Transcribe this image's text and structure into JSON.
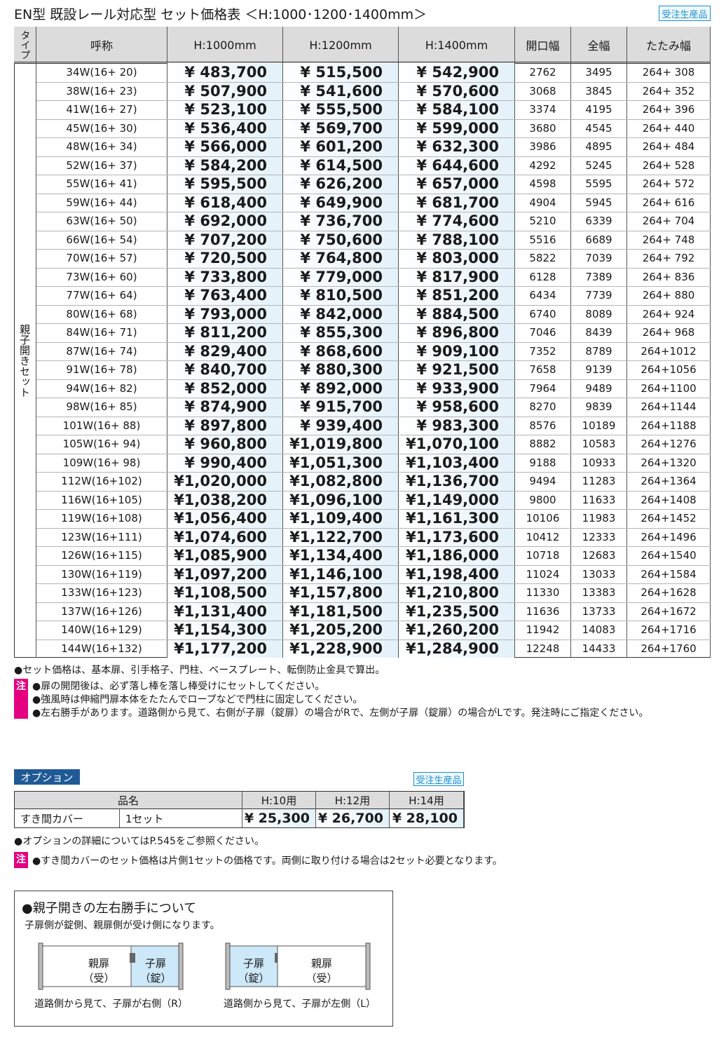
{
  "header": {
    "title": "EN型 既設レール対応型 セット価格表 ＜H:1000･1200･1400mm＞",
    "badge": "受注生産品"
  },
  "table": {
    "columns": [
      "タイプ",
      "呼称",
      "H:1000mm",
      "H:1200mm",
      "H:1400mm",
      "開口幅",
      "全幅",
      "たたみ幅"
    ],
    "type_label": "親子開きセット",
    "rows": [
      [
        "34W(16+ 20)",
        "¥ 483,700",
        "¥ 515,500",
        "¥ 542,900",
        "2762",
        "3495",
        "264+ 308"
      ],
      [
        "38W(16+ 23)",
        "¥ 507,900",
        "¥ 541,600",
        "¥ 570,600",
        "3068",
        "3845",
        "264+ 352"
      ],
      [
        "41W(16+ 27)",
        "¥ 523,100",
        "¥ 555,500",
        "¥ 584,100",
        "3374",
        "4195",
        "264+ 396"
      ],
      [
        "45W(16+ 30)",
        "¥ 536,400",
        "¥ 569,700",
        "¥ 599,000",
        "3680",
        "4545",
        "264+ 440"
      ],
      [
        "48W(16+ 34)",
        "¥ 566,000",
        "¥ 601,200",
        "¥ 632,300",
        "3986",
        "4895",
        "264+ 484"
      ],
      [
        "52W(16+ 37)",
        "¥ 584,200",
        "¥ 614,500",
        "¥ 644,600",
        "4292",
        "5245",
        "264+ 528"
      ],
      [
        "55W(16+ 41)",
        "¥ 595,500",
        "¥ 626,200",
        "¥ 657,000",
        "4598",
        "5595",
        "264+ 572"
      ],
      [
        "59W(16+ 44)",
        "¥ 618,400",
        "¥ 649,900",
        "¥ 681,700",
        "4904",
        "5945",
        "264+ 616"
      ],
      [
        "63W(16+ 50)",
        "¥ 692,000",
        "¥ 736,700",
        "¥ 774,600",
        "5210",
        "6339",
        "264+ 704"
      ],
      [
        "66W(16+ 54)",
        "¥ 707,200",
        "¥ 750,600",
        "¥ 788,100",
        "5516",
        "6689",
        "264+ 748"
      ],
      [
        "70W(16+ 57)",
        "¥ 720,500",
        "¥ 764,800",
        "¥ 803,000",
        "5822",
        "7039",
        "264+ 792"
      ],
      [
        "73W(16+ 60)",
        "¥ 733,800",
        "¥ 779,000",
        "¥ 817,900",
        "6128",
        "7389",
        "264+ 836"
      ],
      [
        "77W(16+ 64)",
        "¥ 763,400",
        "¥ 810,500",
        "¥ 851,200",
        "6434",
        "7739",
        "264+ 880"
      ],
      [
        "80W(16+ 68)",
        "¥ 793,000",
        "¥ 842,000",
        "¥ 884,500",
        "6740",
        "8089",
        "264+ 924"
      ],
      [
        "84W(16+ 71)",
        "¥ 811,200",
        "¥ 855,300",
        "¥ 896,800",
        "7046",
        "8439",
        "264+ 968"
      ],
      [
        "87W(16+ 74)",
        "¥ 829,400",
        "¥ 868,600",
        "¥ 909,100",
        "7352",
        "8789",
        "264+1012"
      ],
      [
        "91W(16+ 78)",
        "¥ 840,700",
        "¥ 880,300",
        "¥ 921,500",
        "7658",
        "9139",
        "264+1056"
      ],
      [
        "94W(16+ 82)",
        "¥ 852,000",
        "¥ 892,000",
        "¥ 933,900",
        "7964",
        "9489",
        "264+1100"
      ],
      [
        "98W(16+ 85)",
        "¥ 874,900",
        "¥ 915,700",
        "¥ 958,600",
        "8270",
        "9839",
        "264+1144"
      ],
      [
        "101W(16+ 88)",
        "¥ 897,800",
        "¥ 939,400",
        "¥ 983,300",
        "8576",
        "10189",
        "264+1188"
      ],
      [
        "105W(16+ 94)",
        "¥ 960,800",
        "¥1,019,800",
        "¥1,070,100",
        "8882",
        "10583",
        "264+1276"
      ],
      [
        "109W(16+ 98)",
        "¥ 990,400",
        "¥1,051,300",
        "¥1,103,400",
        "9188",
        "10933",
        "264+1320"
      ],
      [
        "112W(16+102)",
        "¥1,020,000",
        "¥1,082,800",
        "¥1,136,700",
        "9494",
        "11283",
        "264+1364"
      ],
      [
        "116W(16+105)",
        "¥1,038,200",
        "¥1,096,100",
        "¥1,149,000",
        "9800",
        "11633",
        "264+1408"
      ],
      [
        "119W(16+108)",
        "¥1,056,400",
        "¥1,109,400",
        "¥1,161,300",
        "10106",
        "11983",
        "264+1452"
      ],
      [
        "123W(16+111)",
        "¥1,074,600",
        "¥1,122,700",
        "¥1,173,600",
        "10412",
        "12333",
        "264+1496"
      ],
      [
        "126W(16+115)",
        "¥1,085,900",
        "¥1,134,400",
        "¥1,186,000",
        "10718",
        "12683",
        "264+1540"
      ],
      [
        "130W(16+119)",
        "¥1,097,200",
        "¥1,146,100",
        "¥1,198,400",
        "11024",
        "13033",
        "264+1584"
      ],
      [
        "133W(16+123)",
        "¥1,108,500",
        "¥1,157,800",
        "¥1,210,800",
        "11330",
        "13383",
        "264+1628"
      ],
      [
        "137W(16+126)",
        "¥1,131,400",
        "¥1,181,500",
        "¥1,235,500",
        "11636",
        "13733",
        "264+1672"
      ],
      [
        "140W(16+129)",
        "¥1,154,300",
        "¥1,205,200",
        "¥1,260,200",
        "11942",
        "14083",
        "264+1716"
      ],
      [
        "144W(16+132)",
        "¥1,177,200",
        "¥1,228,900",
        "¥1,284,900",
        "12248",
        "14433",
        "264+1760"
      ]
    ]
  },
  "notes": {
    "general": "●セット価格は、基本扉、引手格子、門柱、ベースプレート、転倒防止金具で算出。",
    "caution_label": "注",
    "caution": [
      "●扉の開閉後は、必ず落し棒を落し棒受けにセットしてください。",
      "●強風時は伸縮門扉本体をたたんでロープなどで門柱に固定してください。",
      "●左右勝手があります。道路側から見て、右側が子扉（錠扉）の場合がRで、左側が子扉（錠扉）の場合がLです。発注時にご指定ください。"
    ]
  },
  "option": {
    "title": "オプション",
    "badge": "受注生産品",
    "columns": [
      "品名",
      "H:10用",
      "H:12用",
      "H:14用"
    ],
    "row": [
      "すき間カバー",
      "1セット",
      "¥ 25,300",
      "¥ 26,700",
      "¥ 28,100"
    ],
    "note": "●オプションの詳細についてはP.545をご参照ください。",
    "caution_label": "注",
    "caution": "●すき間カバーのセット価格は片側1セットの価格です。両側に取り付ける場合は2セット必要となります。"
  },
  "hand": {
    "title": "●親子開きの左右勝手について",
    "text": "子扉側が錠側、親扉側が受け側になります。",
    "right": {
      "parent": [
        "親扉",
        "（受）"
      ],
      "child": [
        "子扉",
        "（錠）"
      ],
      "caption": "道路側から見て、子扉が右側（R）"
    },
    "left": {
      "child": [
        "子扉",
        "（錠）"
      ],
      "parent": [
        "親扉",
        "（受）"
      ],
      "caption": "道路側から見て、子扉が左側（L）"
    }
  }
}
